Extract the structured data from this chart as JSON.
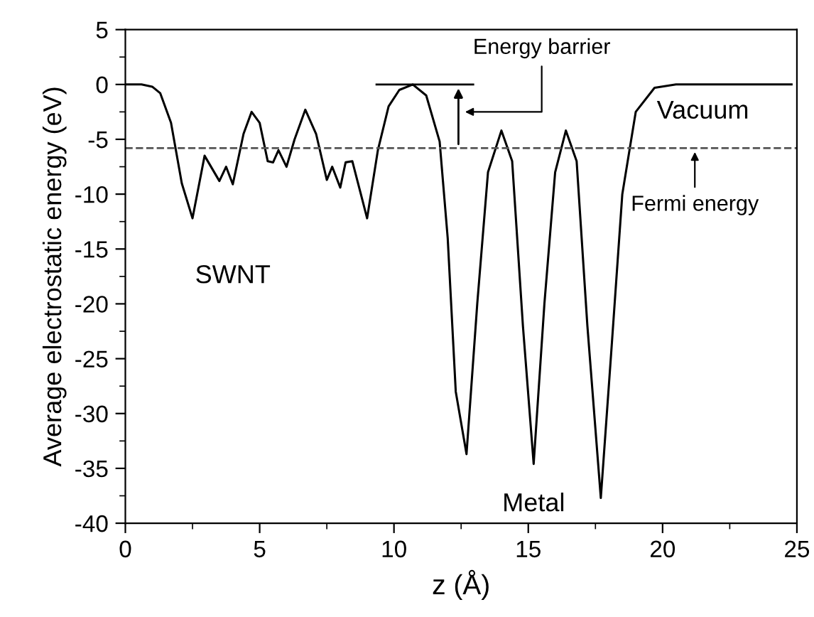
{
  "chart_data": {
    "type": "line",
    "xlabel": "z (Å)",
    "ylabel": "Average electrostatic energy (eV)",
    "xlim": [
      0,
      25
    ],
    "ylim": [
      -40,
      5
    ],
    "xticks": [
      0,
      5,
      10,
      15,
      20,
      25
    ],
    "yticks": [
      -40,
      -35,
      -30,
      -25,
      -20,
      -15,
      -10,
      -5,
      0,
      5
    ],
    "grid": false,
    "legend": false,
    "marker": "none",
    "line_style": "solid",
    "series": [
      {
        "color": "#000000",
        "x": [
          0,
          0.6,
          1.0,
          1.3,
          1.7,
          2.1,
          2.5,
          2.95,
          3.5,
          3.75,
          4.0,
          4.4,
          4.7,
          5.0,
          5.3,
          5.5,
          5.7,
          6.0,
          6.3,
          6.7,
          7.1,
          7.5,
          7.7,
          8.0,
          8.2,
          8.45,
          9.0,
          9.4,
          9.8,
          10.2,
          10.7,
          11.2,
          11.7,
          12.0,
          12.3,
          12.7,
          13.1,
          13.5,
          14.0,
          14.4,
          14.8,
          15.2,
          15.6,
          16.0,
          16.4,
          16.8,
          17.2,
          17.7,
          18.1,
          18.5,
          19.0,
          19.7,
          20.5,
          22,
          24.8
        ],
        "values": [
          0,
          0,
          -0.2,
          -0.8,
          -3.5,
          -9,
          -12.2,
          -6.5,
          -8.8,
          -7.5,
          -9.1,
          -4.5,
          -2.5,
          -3.5,
          -7.0,
          -7.1,
          -6.0,
          -7.5,
          -5,
          -2.3,
          -4.5,
          -8.7,
          -7.5,
          -9.4,
          -7.1,
          -7.0,
          -12.2,
          -6,
          -2,
          -0.5,
          0,
          -1,
          -5.2,
          -14,
          -28,
          -33.7,
          -20,
          -8,
          -4.2,
          -7,
          -22,
          -34.6,
          -20,
          -8,
          -4.2,
          -7,
          -22,
          -37.7,
          -24,
          -10,
          -2.5,
          -0.3,
          0,
          0,
          0
        ]
      }
    ],
    "ref_lines": [
      {
        "axis": "y",
        "value": -5.8,
        "color": "#555555",
        "line_style": "dashed",
        "label": "Fermi energy"
      }
    ],
    "annotations": [
      "Energy barrier",
      "Vacuum",
      "SWNT",
      "Metal"
    ]
  }
}
